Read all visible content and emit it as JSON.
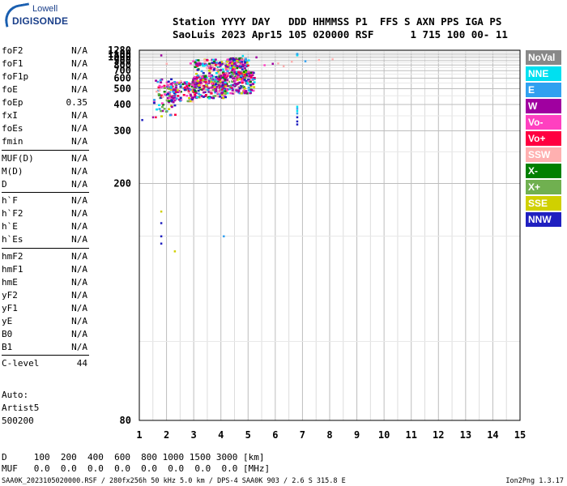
{
  "logo": {
    "line1": "Lowell",
    "line2": "DIGISONDE"
  },
  "header": {
    "line1": "Station YYYY DAY   DDD HHMMSS P1  FFS S AXN PPS IGA PS",
    "line2": "SaoLuis 2023 Apr15 105 020000 RSF      1 715 100 00- 11"
  },
  "params": [
    {
      "group": [
        {
          "name": "foF2",
          "value": "N/A"
        },
        {
          "name": "foF1",
          "value": "N/A"
        },
        {
          "name": "foF1p",
          "value": "N/A"
        },
        {
          "name": "foE",
          "value": "N/A"
        },
        {
          "name": "foEp",
          "value": "0.35"
        },
        {
          "name": "fxI",
          "value": "N/A"
        },
        {
          "name": "foEs",
          "value": "N/A"
        },
        {
          "name": "fmin",
          "value": "N/A"
        }
      ]
    },
    {
      "group": [
        {
          "name": "MUF(D)",
          "value": "N/A"
        },
        {
          "name": "M(D)",
          "value": "N/A"
        },
        {
          "name": "D",
          "value": "N/A"
        }
      ]
    },
    {
      "group": [
        {
          "name": "h`F",
          "value": "N/A"
        },
        {
          "name": "h`F2",
          "value": "N/A"
        },
        {
          "name": "h`E",
          "value": "N/A"
        },
        {
          "name": "h`Es",
          "value": "N/A"
        }
      ]
    },
    {
      "group": [
        {
          "name": "hmF2",
          "value": "N/A"
        },
        {
          "name": "hmF1",
          "value": "N/A"
        },
        {
          "name": "hmE",
          "value": "N/A"
        },
        {
          "name": "yF2",
          "value": "N/A"
        },
        {
          "name": "yF1",
          "value": "N/A"
        },
        {
          "name": "yE",
          "value": "N/A"
        },
        {
          "name": "B0",
          "value": "N/A"
        },
        {
          "name": "B1",
          "value": "N/A"
        }
      ]
    },
    {
      "group": [
        {
          "name": "C-level",
          "value": "44"
        }
      ]
    }
  ],
  "autoscale": {
    "line1": "Auto:",
    "line2": "Artist5",
    "line3": "500200"
  },
  "legend": [
    {
      "label": "NoVal",
      "color": "#888888"
    },
    {
      "label": "NNE",
      "color": "#00e0f0"
    },
    {
      "label": "E",
      "color": "#30a0f0"
    },
    {
      "label": "W",
      "color": "#a000a0"
    },
    {
      "label": "Vo-",
      "color": "#ff40c0"
    },
    {
      "label": "Vo+",
      "color": "#ff0040"
    },
    {
      "label": "SSW",
      "color": "#ffb0b0"
    },
    {
      "label": "X-",
      "color": "#008000"
    },
    {
      "label": "X+",
      "color": "#70b050"
    },
    {
      "label": "SSE",
      "color": "#d0d000"
    },
    {
      "label": "NNW",
      "color": "#2020c0"
    }
  ],
  "footer": {
    "line1": "D     100  200  400  600  800 1000 1500 3000 [km]",
    "line2": "MUF   0.0  0.0  0.0  0.0  0.0  0.0  0.0  0.0 [MHz]",
    "line3": "SAA0K_2023105020000.RSF / 280fx256h 50 kHz 5.0 km / DPS-4 SAA0K 903 / 2.6 S 315.8 E",
    "version": "Ion2Png 1.3.17"
  },
  "chart_data": {
    "type": "scatter",
    "xlim": [
      1,
      15
    ],
    "xticks": [
      1,
      2,
      3,
      4,
      5,
      6,
      7,
      8,
      9,
      10,
      11,
      12,
      13,
      14,
      15
    ],
    "ylim": [
      80,
      1280
    ],
    "yticks": [
      80,
      200,
      300,
      400,
      500,
      600,
      700,
      800,
      900,
      1000,
      1100,
      1280
    ],
    "y_scale": "reciprocal",
    "grid": true,
    "series_colors": [
      "#a000a0",
      "#ff40c0",
      "#ff0040",
      "#2020c0",
      "#d0d000",
      "#30a0f0",
      "#00e0f0",
      "#008000",
      "#70b050",
      "#ffb0b0"
    ],
    "clusters": [
      {
        "xmin": 1.5,
        "xmax": 2.3,
        "ymin": 350,
        "ymax": 600,
        "n": 80
      },
      {
        "xmin": 2.0,
        "xmax": 3.0,
        "ymin": 420,
        "ymax": 580,
        "n": 120
      },
      {
        "xmin": 2.9,
        "xmax": 4.2,
        "ymin": 440,
        "ymax": 640,
        "n": 260
      },
      {
        "xmin": 4.0,
        "xmax": 5.2,
        "ymin": 470,
        "ymax": 700,
        "n": 220
      },
      {
        "xmin": 3.0,
        "xmax": 4.2,
        "ymin": 560,
        "ymax": 860,
        "n": 110
      },
      {
        "xmin": 4.2,
        "xmax": 4.9,
        "ymin": 620,
        "ymax": 1000,
        "n": 120
      },
      {
        "xmin": 2.8,
        "xmax": 5.0,
        "ymin": 780,
        "ymax": 960,
        "n": 60
      }
    ],
    "points": [
      {
        "x": 6.8,
        "y": 1110,
        "c": "#00e0f0"
      },
      {
        "x": 6.8,
        "y": 1100,
        "c": "#00e0f0"
      },
      {
        "x": 6.8,
        "y": 1090,
        "c": "#00e0f0"
      },
      {
        "x": 6.8,
        "y": 1080,
        "c": "#30a0f0"
      },
      {
        "x": 6.8,
        "y": 1070,
        "c": "#00e0f0"
      },
      {
        "x": 6.8,
        "y": 1120,
        "c": "#30a0f0"
      },
      {
        "x": 6.8,
        "y": 390,
        "c": "#00e0f0"
      },
      {
        "x": 6.8,
        "y": 380,
        "c": "#30a0f0"
      },
      {
        "x": 6.8,
        "y": 370,
        "c": "#00e0f0"
      },
      {
        "x": 6.8,
        "y": 360,
        "c": "#30a0f0"
      },
      {
        "x": 6.8,
        "y": 345,
        "c": "#2020c0"
      },
      {
        "x": 6.8,
        "y": 330,
        "c": "#2020c0"
      },
      {
        "x": 6.8,
        "y": 320,
        "c": "#2020c0"
      },
      {
        "x": 1.8,
        "y": 1065,
        "c": "#a000a0"
      },
      {
        "x": 1.8,
        "y": 170,
        "c": "#d0d000"
      },
      {
        "x": 1.8,
        "y": 160,
        "c": "#2020c0"
      },
      {
        "x": 1.8,
        "y": 150,
        "c": "#2020c0"
      },
      {
        "x": 1.8,
        "y": 145,
        "c": "#2020c0"
      },
      {
        "x": 4.1,
        "y": 150,
        "c": "#30a0f0"
      },
      {
        "x": 2.3,
        "y": 140,
        "c": "#d0d000"
      },
      {
        "x": 1.1,
        "y": 335,
        "c": "#2020c0"
      },
      {
        "x": 1.5,
        "y": 345,
        "c": "#a000a0"
      },
      {
        "x": 1.6,
        "y": 345,
        "c": "#ff0040"
      },
      {
        "x": 8.1,
        "y": 945,
        "c": "#ffb0b0"
      },
      {
        "x": 7.6,
        "y": 920,
        "c": "#ffb0b0"
      },
      {
        "x": 7.1,
        "y": 890,
        "c": "#30a0f0"
      },
      {
        "x": 6.6,
        "y": 880,
        "c": "#ffb0b0"
      },
      {
        "x": 6.1,
        "y": 840,
        "c": "#ffb0b0"
      },
      {
        "x": 5.9,
        "y": 830,
        "c": "#a000a0"
      },
      {
        "x": 6.3,
        "y": 780,
        "c": "#ffb0b0"
      },
      {
        "x": 5.6,
        "y": 800,
        "c": "#ff40c0"
      },
      {
        "x": 4.8,
        "y": 1045,
        "c": "#00e0f0"
      },
      {
        "x": 5.3,
        "y": 1000,
        "c": "#a000a0"
      },
      {
        "x": 2.0,
        "y": 830,
        "c": "#ffb0b0"
      }
    ]
  }
}
